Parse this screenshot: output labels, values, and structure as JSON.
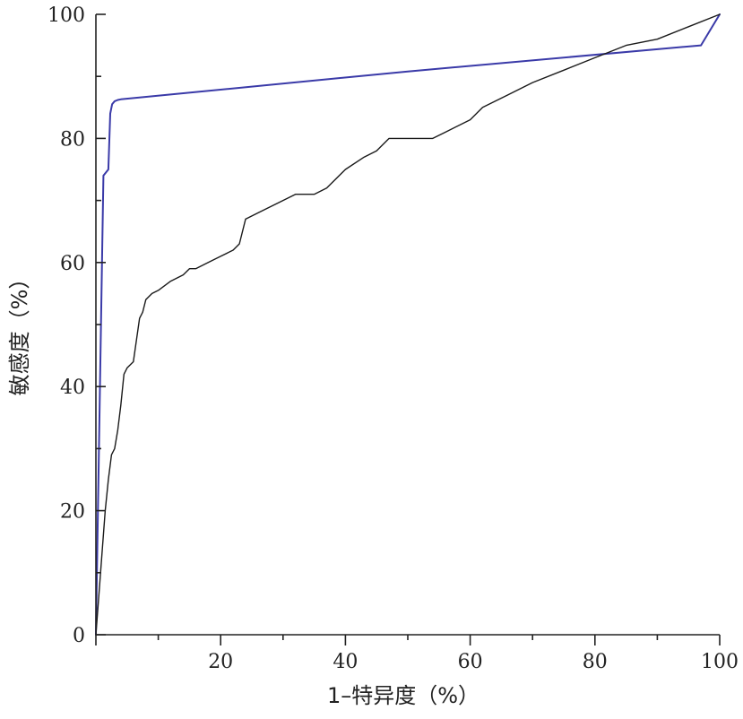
{
  "chart_data": {
    "type": "line",
    "title": "",
    "xlabel": "1–特异度（%）",
    "ylabel": "敏感度（%）",
    "xlim": [
      0,
      100
    ],
    "ylim": [
      0,
      100
    ],
    "x_ticks": [
      0,
      20,
      40,
      60,
      80,
      100
    ],
    "y_ticks": [
      0,
      20,
      40,
      60,
      80,
      100
    ],
    "x_tick_labels": [
      "20",
      "40",
      "60",
      "80",
      "100"
    ],
    "y_tick_labels": [
      "0",
      "20",
      "40",
      "60",
      "80",
      "100"
    ],
    "grid": false,
    "legend": "none",
    "series": [
      {
        "color": "#3a3aa8",
        "x": [
          0,
          1.2,
          2.0,
          2.3,
          2.6,
          3.0,
          3.5,
          4.0,
          50,
          97,
          100
        ],
        "y": [
          0,
          74,
          75,
          84,
          85.5,
          86,
          86.2,
          86.3,
          90.8,
          95,
          100
        ]
      },
      {
        "color": "#1a1a1a",
        "x": [
          0,
          1.5,
          2.0,
          2.5,
          3.0,
          3.5,
          4.0,
          4.5,
          5.0,
          6.0,
          7.0,
          7.5,
          8.0,
          9.0,
          10,
          12,
          14,
          15,
          16,
          18,
          20,
          22,
          23,
          24,
          26,
          28,
          30,
          32,
          35,
          37,
          40,
          43,
          45,
          47,
          50,
          54,
          56,
          60,
          62,
          66,
          70,
          75,
          80,
          85,
          90,
          95,
          100
        ],
        "y": [
          0,
          20,
          25,
          29,
          30,
          33,
          37,
          42,
          43,
          44,
          51,
          52,
          54,
          55,
          55.5,
          57,
          58,
          59,
          59,
          60,
          61,
          62,
          63,
          67,
          68,
          69,
          70,
          71,
          71,
          72,
          75,
          77,
          78,
          80,
          80,
          80,
          81,
          83,
          85,
          87,
          89,
          91,
          93,
          95,
          96,
          98,
          100
        ]
      }
    ]
  }
}
